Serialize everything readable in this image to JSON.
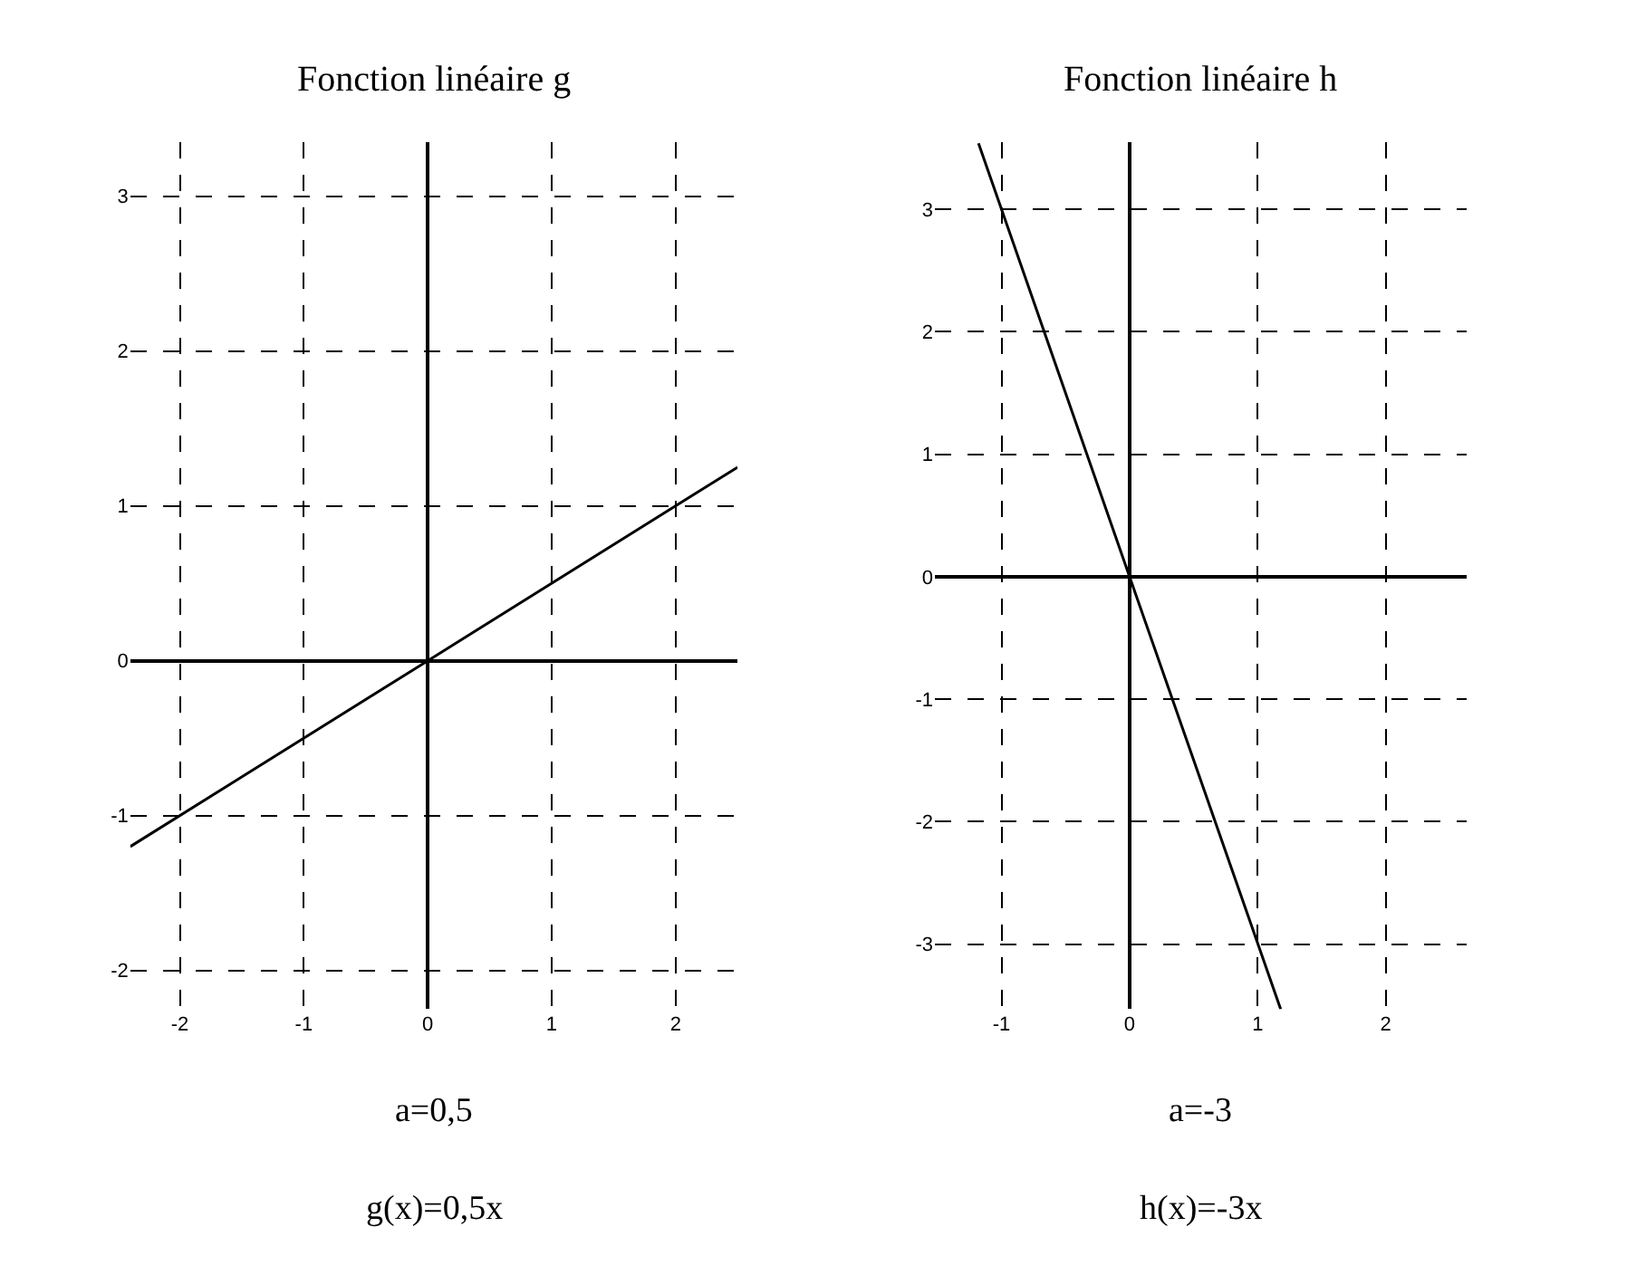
{
  "chart_data": [
    {
      "type": "line",
      "title": "Fonction linéaire g",
      "x": [
        -2.4,
        0,
        2.5
      ],
      "series": [
        {
          "color": "#000000",
          "values": [
            -1.2,
            0,
            1.25
          ]
        }
      ],
      "xlim": [
        -2.4,
        2.5
      ],
      "ylim": [
        -2.25,
        3.35
      ],
      "xticks": [
        -2,
        -1,
        0,
        1,
        2
      ],
      "yticks": [
        -2,
        -1,
        0,
        1,
        2,
        3
      ],
      "grid": true,
      "annotations": [
        "a=0,5",
        "g(x)=0,5x"
      ]
    },
    {
      "type": "line",
      "title": "Fonction linéaire h",
      "x": [
        -1.18,
        0,
        1.18
      ],
      "series": [
        {
          "color": "#000000",
          "values": [
            3.54,
            0,
            -3.53
          ]
        }
      ],
      "xlim": [
        -1.52,
        2.63
      ],
      "ylim": [
        -3.53,
        3.55
      ],
      "xticks": [
        -1,
        0,
        1,
        2
      ],
      "yticks": [
        -3,
        -2,
        -1,
        0,
        1,
        2,
        3
      ],
      "grid": true,
      "annotations": [
        "a=-3",
        "h(x)=-3x"
      ]
    }
  ]
}
